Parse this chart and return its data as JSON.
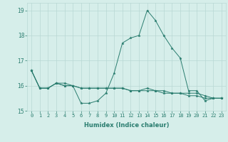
{
  "title": "",
  "xlabel": "Humidex (Indice chaleur)",
  "x_values": [
    0,
    1,
    2,
    3,
    4,
    5,
    6,
    7,
    8,
    9,
    10,
    11,
    12,
    13,
    14,
    15,
    16,
    17,
    18,
    19,
    20,
    21,
    22,
    23
  ],
  "line1": [
    16.6,
    15.9,
    15.9,
    16.1,
    16.1,
    16.0,
    15.3,
    15.3,
    15.4,
    15.7,
    16.5,
    17.7,
    17.9,
    18.0,
    19.0,
    18.6,
    18.0,
    17.5,
    17.1,
    15.8,
    15.8,
    15.4,
    15.5,
    15.5
  ],
  "line2": [
    16.6,
    15.9,
    15.9,
    16.1,
    16.0,
    16.0,
    15.9,
    15.9,
    15.9,
    15.9,
    15.9,
    15.9,
    15.8,
    15.8,
    15.8,
    15.8,
    15.8,
    15.7,
    15.7,
    15.7,
    15.7,
    15.6,
    15.5,
    15.5
  ],
  "line3": [
    16.6,
    15.9,
    15.9,
    16.1,
    16.0,
    16.0,
    15.9,
    15.9,
    15.9,
    15.9,
    15.9,
    15.9,
    15.8,
    15.8,
    15.9,
    15.8,
    15.7,
    15.7,
    15.7,
    15.6,
    15.6,
    15.5,
    15.5,
    15.5
  ],
  "ylim": [
    15.0,
    19.3
  ],
  "xlim": [
    -0.5,
    23.5
  ],
  "yticks": [
    15,
    16,
    17,
    18,
    19
  ],
  "xticks": [
    0,
    1,
    2,
    3,
    4,
    5,
    6,
    7,
    8,
    9,
    10,
    11,
    12,
    13,
    14,
    15,
    16,
    17,
    18,
    19,
    20,
    21,
    22,
    23
  ],
  "line_color": "#2a7d6f",
  "bg_color": "#d6eeea",
  "grid_color": "#b8d8d4",
  "marker_size": 2.5,
  "linewidth": 0.7,
  "xlabel_fontsize": 6.0,
  "tick_fontsize": 5.0,
  "ytick_fontsize": 5.5
}
